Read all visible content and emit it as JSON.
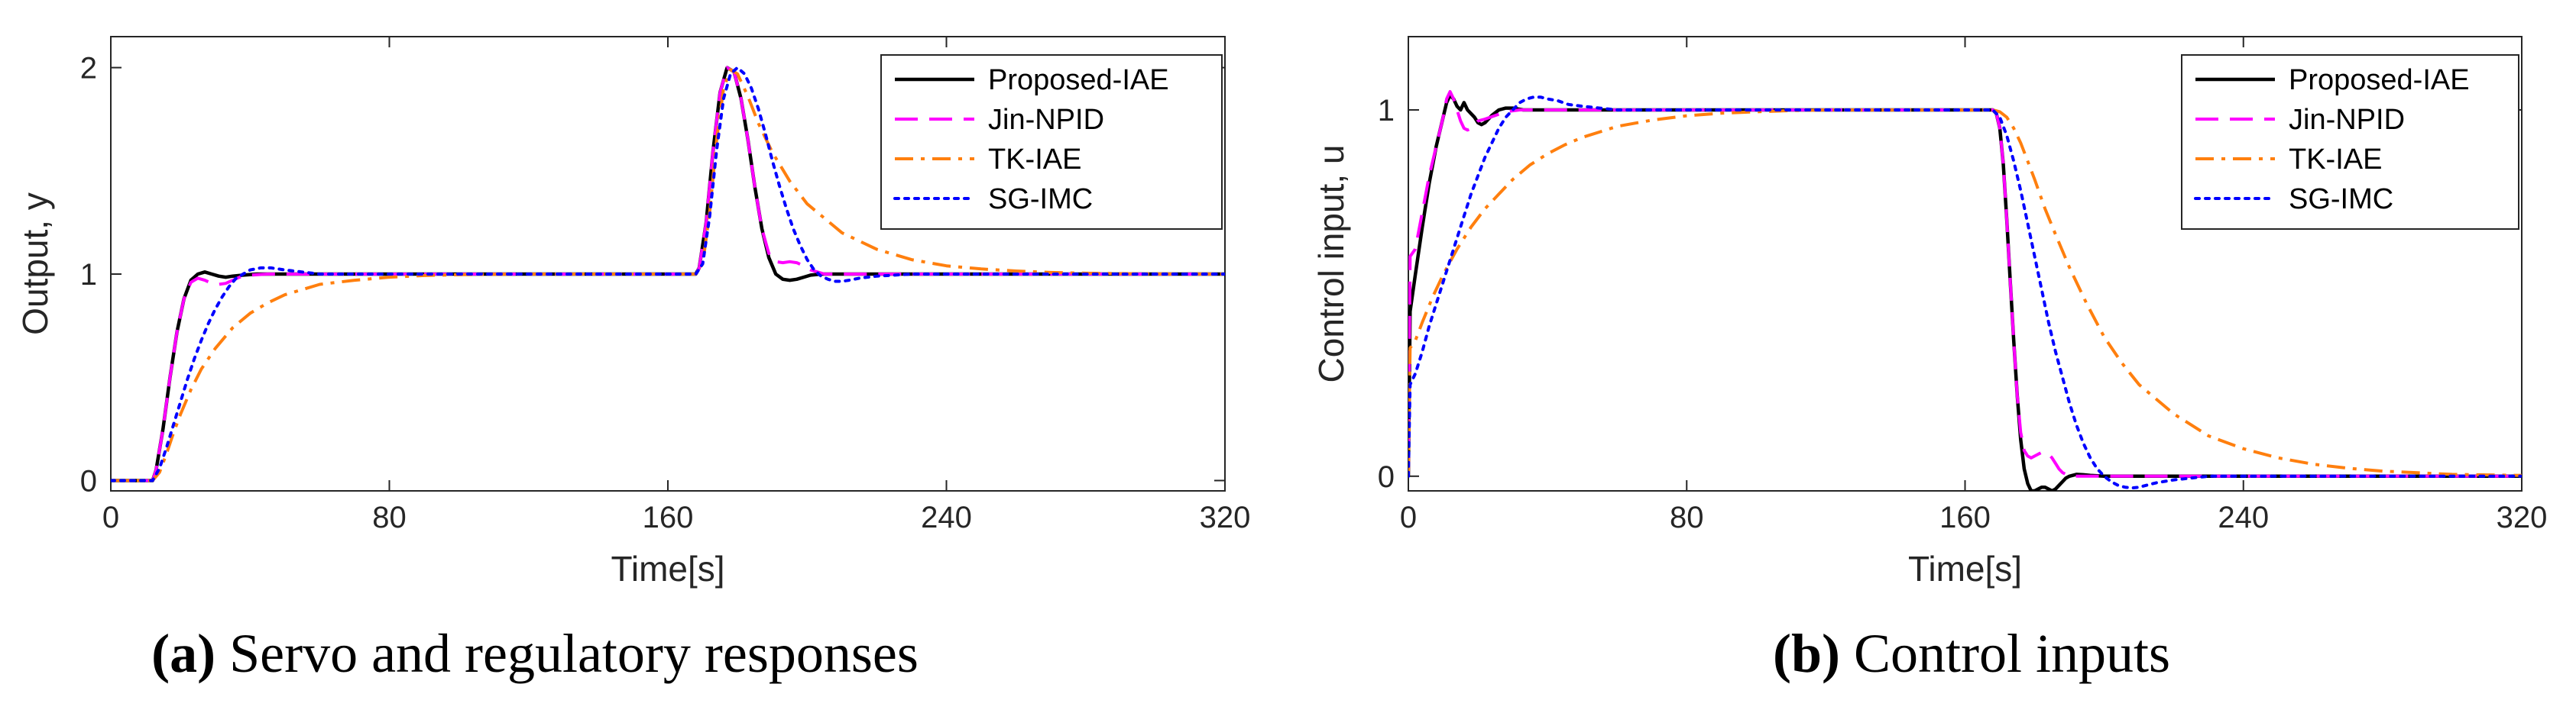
{
  "chart_data": [
    {
      "type": "line",
      "id": "a",
      "caption_tag": "(a)",
      "caption_text": "Servo and regulatory responses",
      "xlabel": "Time[s]",
      "ylabel": "Output, y",
      "xlim": [
        0,
        320
      ],
      "ylim": [
        -0.05,
        2.15
      ],
      "xticks": [
        0,
        80,
        160,
        240,
        320
      ],
      "yticks": [
        0,
        1,
        2
      ],
      "legend_position": "top-right",
      "series": [
        {
          "name": "Proposed-IAE",
          "color": "#000000",
          "style": "solid",
          "x": [
            0,
            12,
            13,
            15,
            17,
            19,
            21,
            23,
            25,
            27,
            29,
            31,
            33,
            35,
            38,
            42,
            50,
            60,
            80,
            120,
            168,
            169,
            171,
            173,
            175,
            177,
            179,
            181,
            183,
            185,
            187,
            189,
            191,
            193,
            195,
            197,
            199,
            201,
            204,
            208,
            215,
            225,
            250,
            320
          ],
          "y": [
            0,
            0,
            0.05,
            0.25,
            0.5,
            0.72,
            0.88,
            0.97,
            1.0,
            1.01,
            1.0,
            0.99,
            0.985,
            0.99,
            0.995,
            1.0,
            1.0,
            1.0,
            1.0,
            1.0,
            1.0,
            1.03,
            1.25,
            1.6,
            1.88,
            2.0,
            1.98,
            1.85,
            1.65,
            1.42,
            1.22,
            1.08,
            1.0,
            0.975,
            0.97,
            0.975,
            0.985,
            0.995,
            1.0,
            1.0,
            1.0,
            1.0,
            1.0,
            1.0
          ]
        },
        {
          "name": "Jin-NPID",
          "color": "#ff00ff",
          "style": "dashed",
          "x": [
            0,
            12,
            13,
            15,
            17,
            19,
            21,
            23,
            25,
            27,
            29,
            31,
            33,
            35,
            37,
            40,
            45,
            55,
            80,
            168,
            169,
            171,
            173,
            175,
            177,
            179,
            181,
            183,
            185,
            187,
            189,
            191,
            193,
            195,
            197,
            199,
            201,
            205,
            210,
            250,
            320
          ],
          "y": [
            0,
            0,
            0.05,
            0.25,
            0.5,
            0.72,
            0.88,
            0.96,
            0.98,
            0.97,
            0.955,
            0.95,
            0.955,
            0.97,
            0.985,
            0.995,
            1.0,
            1.0,
            1.0,
            1.0,
            1.03,
            1.25,
            1.6,
            1.88,
            2.0,
            1.98,
            1.85,
            1.65,
            1.42,
            1.22,
            1.1,
            1.06,
            1.055,
            1.06,
            1.055,
            1.04,
            1.02,
            1.0,
            1.0,
            1.0,
            1.0
          ]
        },
        {
          "name": "TK-IAE",
          "color": "#ff7f0e",
          "style": "dashdot",
          "x": [
            0,
            12,
            14,
            16,
            18,
            20,
            23,
            26,
            30,
            35,
            40,
            45,
            50,
            60,
            70,
            80,
            90,
            100,
            110,
            120,
            140,
            168,
            170,
            172,
            174,
            176,
            178,
            180,
            183,
            186,
            190,
            195,
            200,
            210,
            220,
            230,
            240,
            250,
            260,
            270,
            280,
            300,
            320
          ],
          "y": [
            0,
            0,
            0.04,
            0.13,
            0.23,
            0.32,
            0.44,
            0.54,
            0.64,
            0.74,
            0.81,
            0.86,
            0.9,
            0.95,
            0.97,
            0.985,
            0.993,
            0.997,
            0.999,
            1.0,
            1.0,
            1.0,
            1.05,
            1.3,
            1.65,
            1.9,
            1.99,
            1.97,
            1.86,
            1.73,
            1.59,
            1.45,
            1.34,
            1.2,
            1.12,
            1.07,
            1.04,
            1.025,
            1.015,
            1.008,
            1.004,
            1.001,
            1.0
          ]
        },
        {
          "name": "SG-IMC",
          "color": "#0000ff",
          "style": "dotted",
          "x": [
            0,
            12,
            14,
            16,
            18,
            20,
            22,
            24,
            26,
            28,
            30,
            32,
            34,
            36,
            38,
            40,
            43,
            46,
            50,
            55,
            60,
            70,
            80,
            168,
            170,
            172,
            174,
            176,
            178,
            180,
            182,
            184,
            186,
            188,
            190,
            192,
            194,
            196,
            198,
            200,
            202,
            204,
            206,
            208,
            210,
            212,
            215,
            220,
            225,
            230,
            240,
            260,
            320
          ],
          "y": [
            0,
            0,
            0.06,
            0.16,
            0.27,
            0.38,
            0.49,
            0.59,
            0.68,
            0.76,
            0.83,
            0.89,
            0.94,
            0.98,
            1.0,
            1.02,
            1.03,
            1.03,
            1.02,
            1.01,
            1.0,
            1.0,
            1.0,
            1.0,
            1.05,
            1.28,
            1.6,
            1.85,
            1.97,
            2.0,
            1.97,
            1.9,
            1.8,
            1.68,
            1.55,
            1.43,
            1.32,
            1.22,
            1.14,
            1.07,
            1.02,
            0.99,
            0.975,
            0.965,
            0.965,
            0.97,
            0.98,
            0.99,
            0.995,
            1.0,
            1.0,
            1.0,
            1.0
          ]
        }
      ]
    },
    {
      "type": "line",
      "id": "b",
      "caption_tag": "(b)",
      "caption_text": "Control inputs",
      "xlabel": "Time[s]",
      "ylabel": "Control input, u",
      "xlim": [
        0,
        320
      ],
      "ylim": [
        -0.04,
        1.2
      ],
      "xticks": [
        0,
        80,
        160,
        240,
        320
      ],
      "yticks": [
        0,
        1
      ],
      "legend_position": "top-right",
      "series": [
        {
          "name": "Proposed-IAE",
          "color": "#000000",
          "style": "solid",
          "x": [
            0,
            0.5,
            2,
            4,
            6,
            8,
            10,
            11,
            12,
            13,
            14,
            15,
            16,
            17,
            18,
            19,
            20,
            21,
            22,
            24,
            26,
            28,
            30,
            33,
            36,
            40,
            50,
            80,
            120,
            160,
            168,
            169,
            170,
            171,
            172,
            173,
            174,
            175,
            176,
            177,
            178,
            179,
            180,
            181,
            182,
            183,
            184,
            185,
            186,
            187,
            188,
            189,
            190,
            192,
            194,
            196,
            200,
            210,
            320
          ],
          "y": [
            0,
            0.45,
            0.55,
            0.68,
            0.8,
            0.9,
            0.98,
            1.02,
            1.04,
            1.03,
            1.01,
            1.0,
            1.02,
            1.0,
            0.99,
            0.98,
            0.965,
            0.96,
            0.965,
            0.985,
            1.0,
            1.005,
            1.005,
            1.0,
            1.0,
            1.0,
            1.0,
            1.0,
            1.0,
            1.0,
            1.0,
            0.99,
            0.95,
            0.85,
            0.7,
            0.53,
            0.37,
            0.22,
            0.1,
            0.02,
            -0.02,
            -0.04,
            -0.04,
            -0.035,
            -0.03,
            -0.03,
            -0.035,
            -0.04,
            -0.035,
            -0.025,
            -0.015,
            -0.005,
            0,
            0.005,
            0.004,
            0.002,
            0,
            0,
            0
          ]
        },
        {
          "name": "Jin-NPID",
          "color": "#ff00ff",
          "style": "dashed",
          "x": [
            0,
            0.5,
            2,
            4,
            6,
            8,
            10,
            11,
            12,
            13,
            14,
            15,
            16,
            17,
            18,
            19,
            20,
            22,
            25,
            28,
            32,
            36,
            40,
            50,
            80,
            160,
            168,
            169,
            170,
            171,
            172,
            173,
            174,
            175,
            176,
            177,
            178,
            179,
            180,
            181,
            182,
            183,
            184,
            185,
            186,
            187,
            188,
            189,
            190,
            192,
            194,
            196,
            200,
            210,
            320
          ],
          "y": [
            0,
            0.6,
            0.62,
            0.72,
            0.82,
            0.9,
            0.98,
            1.03,
            1.05,
            1.03,
            1.0,
            0.97,
            0.95,
            0.945,
            0.95,
            0.96,
            0.97,
            0.975,
            0.985,
            0.995,
            1.0,
            1.0,
            1.0,
            1.0,
            1.0,
            1.0,
            1.0,
            0.99,
            0.95,
            0.85,
            0.7,
            0.53,
            0.37,
            0.22,
            0.12,
            0.07,
            0.055,
            0.05,
            0.055,
            0.06,
            0.065,
            0.065,
            0.06,
            0.05,
            0.035,
            0.02,
            0.01,
            0.005,
            0,
            0,
            0,
            0,
            0,
            0,
            0
          ]
        },
        {
          "name": "TK-IAE",
          "color": "#ff7f0e",
          "style": "dashdot",
          "x": [
            0,
            0.5,
            2,
            4,
            7,
            10,
            14,
            18,
            22,
            26,
            30,
            35,
            40,
            45,
            50,
            60,
            70,
            80,
            90,
            100,
            110,
            120,
            140,
            168,
            170,
            172,
            174,
            176,
            178,
            180,
            183,
            186,
            190,
            195,
            200,
            205,
            210,
            220,
            230,
            240,
            250,
            260,
            270,
            280,
            300,
            320
          ],
          "y": [
            0,
            0.35,
            0.37,
            0.42,
            0.49,
            0.55,
            0.62,
            0.68,
            0.73,
            0.77,
            0.81,
            0.85,
            0.88,
            0.905,
            0.925,
            0.955,
            0.972,
            0.984,
            0.991,
            0.995,
            0.998,
            1.0,
            1.0,
            1.0,
            0.995,
            0.98,
            0.95,
            0.91,
            0.86,
            0.81,
            0.73,
            0.66,
            0.57,
            0.47,
            0.38,
            0.31,
            0.25,
            0.17,
            0.11,
            0.075,
            0.05,
            0.033,
            0.022,
            0.014,
            0.005,
            0.002
          ]
        },
        {
          "name": "SG-IMC",
          "color": "#0000ff",
          "style": "dotted",
          "x": [
            0,
            0.5,
            2,
            4,
            6,
            8,
            10,
            12,
            14,
            16,
            18,
            20,
            22,
            24,
            26,
            28,
            30,
            32,
            34,
            36,
            38,
            40,
            43,
            46,
            50,
            55,
            60,
            70,
            80,
            160,
            168,
            170,
            172,
            174,
            176,
            178,
            180,
            182,
            184,
            186,
            188,
            190,
            192,
            194,
            196,
            198,
            200,
            202,
            204,
            206,
            208,
            210,
            212,
            215,
            220,
            225,
            230,
            240,
            320
          ],
          "y": [
            0,
            0.25,
            0.28,
            0.34,
            0.41,
            0.47,
            0.53,
            0.59,
            0.65,
            0.71,
            0.77,
            0.82,
            0.87,
            0.91,
            0.95,
            0.98,
            1.0,
            1.02,
            1.03,
            1.035,
            1.035,
            1.03,
            1.025,
            1.015,
            1.01,
            1.005,
            1.0,
            1.0,
            1.0,
            1.0,
            1.0,
            0.98,
            0.93,
            0.86,
            0.78,
            0.69,
            0.6,
            0.51,
            0.42,
            0.34,
            0.27,
            0.2,
            0.14,
            0.09,
            0.05,
            0.02,
            0,
            -0.015,
            -0.025,
            -0.03,
            -0.032,
            -0.03,
            -0.025,
            -0.018,
            -0.01,
            -0.005,
            0,
            0,
            0
          ]
        }
      ]
    }
  ]
}
